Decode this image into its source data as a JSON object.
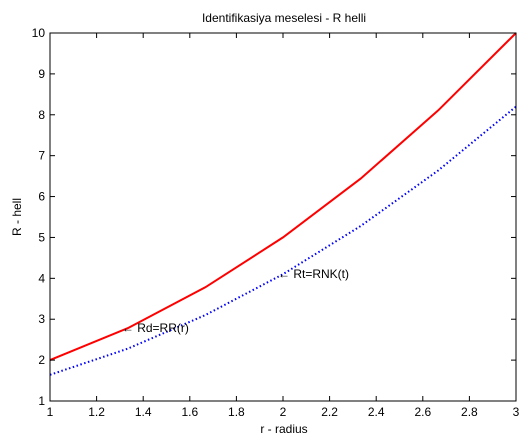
{
  "chart_data": {
    "type": "line",
    "title": "Identifikasiya meselesi - R  helli",
    "xlabel": "r - radius",
    "ylabel": "R  - hell",
    "xlim": [
      1,
      3
    ],
    "ylim": [
      1,
      10
    ],
    "xticks": [
      1,
      1.2,
      1.4,
      1.6,
      1.8,
      2,
      2.2,
      2.4,
      2.6,
      2.8,
      3
    ],
    "yticks": [
      1,
      2,
      3,
      4,
      5,
      6,
      7,
      8,
      9,
      10
    ],
    "xtick_labels": [
      "1",
      "1.2",
      "1.4",
      "1.6",
      "1.8",
      "2",
      "2.2",
      "2.4",
      "2.6",
      "2.8",
      "3"
    ],
    "ytick_labels": [
      "1",
      "2",
      "3",
      "4",
      "5",
      "6",
      "7",
      "8",
      "9",
      "10"
    ],
    "grid": false,
    "series": [
      {
        "style": "solid",
        "color": "#ff0000",
        "x": [
          1,
          1.3333,
          1.6667,
          2,
          2.3333,
          2.6667,
          3
        ],
        "y": [
          2.0,
          2.78,
          3.78,
          5.0,
          6.44,
          8.11,
          10.0
        ]
      },
      {
        "style": "dotted",
        "color": "#0000ff",
        "x": [
          1,
          1.3333,
          1.6667,
          2,
          2.3333,
          2.6667,
          3
        ],
        "y": [
          1.64,
          2.28,
          3.1,
          4.1,
          5.28,
          6.64,
          8.2
        ]
      }
    ],
    "annotations": [
      {
        "text": "← Rd=RR(r)",
        "x": 1.33,
        "y": 2.78
      },
      {
        "text": "← Rt=RNK(t)",
        "x": 2.0,
        "y": 4.1
      }
    ]
  }
}
